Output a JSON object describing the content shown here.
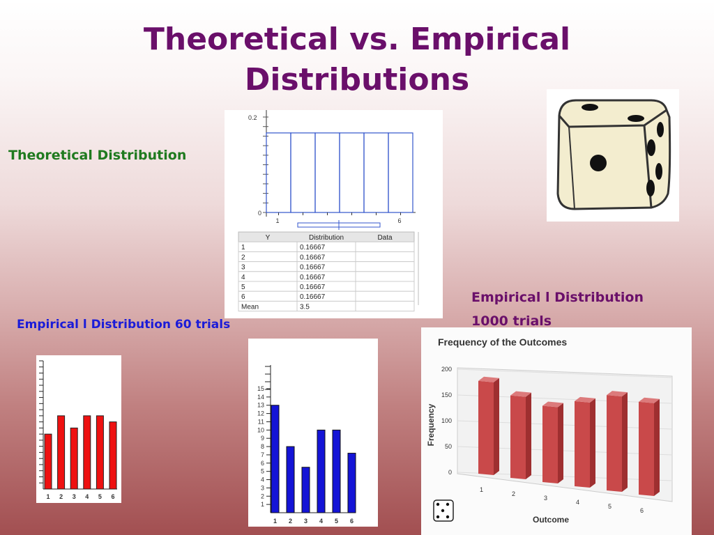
{
  "slide": {
    "title_line1": "Theoretical vs. Empirical",
    "title_line2": "Distributions",
    "label_theoretical": "Theoretical Distribution",
    "label_empirical_60": "Empirical l Distribution  60 trials",
    "label_empirical_1000_line1": "Empirical l Distribution",
    "label_empirical_1000_line2": "1000 trials"
  },
  "colors": {
    "title": "#6a0f6a",
    "theoretical_label": "#1f7a1f",
    "empirical60_label": "#1b1bd8",
    "red_bars": "#ee1111",
    "blue_bars": "#1414d6",
    "freq_bars": "#c9494a",
    "theo_outline": "#3355cc"
  },
  "dice_icon": "die-face-icon",
  "chart_data": [
    {
      "type": "bar",
      "name_ref": "theoretical",
      "categories": [
        "1",
        "2",
        "3",
        "4",
        "5",
        "6"
      ],
      "values": [
        0.16667,
        0.16667,
        0.16667,
        0.16667,
        0.16667,
        0.16667
      ],
      "ylim": [
        0,
        0.2
      ],
      "y_tick_labels": [
        "0",
        "0.2"
      ],
      "x_tick_labels": [
        "1",
        "6"
      ],
      "table": {
        "columns": [
          "Y",
          "Distribution",
          "Data"
        ],
        "rows": [
          [
            "1",
            "0.16667",
            ""
          ],
          [
            "2",
            "0.16667",
            ""
          ],
          [
            "3",
            "0.16667",
            ""
          ],
          [
            "4",
            "0.16667",
            ""
          ],
          [
            "5",
            "0.16667",
            ""
          ],
          [
            "6",
            "0.16667",
            ""
          ],
          [
            "Mean",
            "3.5",
            ""
          ]
        ]
      }
    },
    {
      "type": "bar",
      "name_ref": "empirical_60_red",
      "categories": [
        "1",
        "2",
        "3",
        "4",
        "5",
        "6"
      ],
      "values": [
        9,
        12,
        10,
        12,
        12,
        11
      ],
      "ylim": [
        0,
        21
      ]
    },
    {
      "type": "bar",
      "name_ref": "empirical_60_blue",
      "categories": [
        "1",
        "2",
        "3",
        "4",
        "5",
        "6"
      ],
      "values": [
        13,
        8,
        5.5,
        10,
        10,
        7.2
      ],
      "ylim": [
        0,
        15
      ],
      "y_tick_labels": [
        "1",
        "2",
        "3",
        "4",
        "5",
        "6",
        "7",
        "8",
        "9",
        "10",
        "11",
        "12",
        "13",
        "14",
        "15"
      ]
    },
    {
      "type": "bar",
      "name_ref": "empirical_1000",
      "title": "Frequency of the Outcomes",
      "xlabel": "Outcome",
      "ylabel": "Frequency",
      "categories": [
        "1",
        "2",
        "3",
        "4",
        "5",
        "6"
      ],
      "values": [
        180,
        160,
        148,
        165,
        185,
        180
      ],
      "ylim": [
        0,
        200
      ],
      "y_tick_labels": [
        "0",
        "50",
        "100",
        "150",
        "200"
      ]
    }
  ]
}
